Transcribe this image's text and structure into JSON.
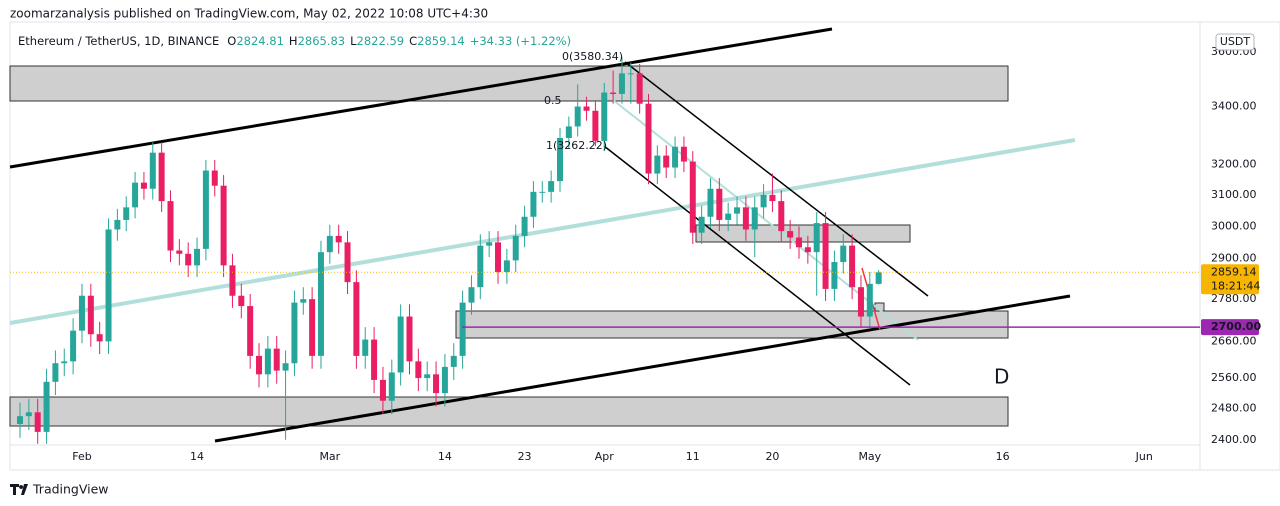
{
  "header": "zoomarzanalysis published on TradingView.com, May 02, 2022 10:08 UTC+4:30",
  "footer": "TradingView",
  "chart_data": {
    "type": "candlestick",
    "title": "Ethereum / TetherUS, 1D, BINANCE",
    "ohlc_prefixes": [
      "O",
      "H",
      "L",
      "C"
    ],
    "change": "+34.33 (+1.22%)",
    "currency": "USDT",
    "log": true,
    "up_color": "#26a69a",
    "down_color": "#e91e63",
    "open": [
      2440,
      2460,
      2470,
      2420,
      2550,
      2600,
      2605,
      2690,
      2790,
      2680,
      2660,
      2990,
      3020,
      3060,
      3140,
      3120,
      3240,
      3080,
      2925,
      2915,
      2880,
      2930,
      3180,
      3130,
      2880,
      2790,
      2760,
      2620,
      2570,
      2640,
      2580,
      2600,
      2770,
      2780,
      2620,
      2920,
      2970,
      2950,
      2830,
      2620,
      2665,
      2555,
      2500,
      2575,
      2730,
      2605,
      2560,
      2570,
      2520,
      2590,
      2620,
      2770,
      2815,
      2940,
      2950,
      2860,
      2895,
      2970,
      3030,
      3110,
      3110,
      3145,
      3290,
      3330,
      3400,
      3385,
      3280,
      3450,
      3445,
      3520,
      3520,
      3410,
      3170,
      3230,
      3190,
      3260,
      3210,
      2980,
      3030,
      3120,
      3020,
      3040,
      3060,
      2990,
      3060,
      3100,
      3080,
      2985,
      2965,
      2935,
      2920,
      3010,
      2810,
      2890,
      2940,
      2815,
      2730,
      2824.81
    ],
    "high": [
      2495,
      2505,
      2505,
      2585,
      2635,
      2640,
      2725,
      2825,
      2825,
      2715,
      3025,
      3055,
      3095,
      3175,
      3175,
      3275,
      3275,
      3115,
      2960,
      2950,
      2965,
      3215,
      3215,
      3165,
      2915,
      2825,
      2795,
      2655,
      2675,
      2675,
      2635,
      2805,
      2815,
      2815,
      2955,
      3005,
      3005,
      2985,
      2865,
      2700,
      2700,
      2590,
      2610,
      2765,
      2765,
      2640,
      2605,
      2605,
      2625,
      2655,
      2805,
      2850,
      2975,
      2985,
      2985,
      2930,
      3005,
      3065,
      3145,
      3145,
      3180,
      3325,
      3365,
      3480,
      3435,
      3420,
      3485,
      3530,
      3580.34,
      3560,
      3555,
      3445,
      3265,
      3265,
      3295,
      3295,
      3245,
      3065,
      3155,
      3155,
      3075,
      3095,
      3095,
      3095,
      3135,
      3170,
      3115,
      3020,
      3000,
      2970,
      3045,
      3045,
      2925,
      2975,
      2975,
      2850,
      2860,
      2865.83
    ],
    "low": [
      2405,
      2425,
      2390,
      2390,
      2515,
      2565,
      2570,
      2655,
      2645,
      2625,
      2625,
      2955,
      2985,
      3025,
      3085,
      3085,
      3045,
      2890,
      2880,
      2845,
      2845,
      2895,
      3095,
      2845,
      2755,
      2725,
      2585,
      2535,
      2535,
      2545,
      2400,
      2565,
      2735,
      2585,
      2585,
      2885,
      2915,
      2795,
      2585,
      2585,
      2520,
      2465,
      2465,
      2540,
      2570,
      2525,
      2525,
      2485,
      2485,
      2555,
      2585,
      2735,
      2780,
      2905,
      2825,
      2825,
      2860,
      2935,
      2995,
      3075,
      3075,
      3110,
      3255,
      3295,
      3350,
      3262.22,
      3245,
      3410,
      3410,
      3410,
      3375,
      3135,
      3135,
      3155,
      3155,
      3175,
      2945,
      2945,
      2995,
      2985,
      2985,
      3005,
      2955,
      2905,
      3025,
      3045,
      2950,
      2930,
      2900,
      2885,
      2790,
      2775,
      2775,
      2855,
      2780,
      2700,
      2695,
      2822.59
    ],
    "close": [
      2460,
      2470,
      2420,
      2550,
      2600,
      2605,
      2690,
      2790,
      2680,
      2660,
      2990,
      3020,
      3060,
      3140,
      3120,
      3240,
      3080,
      2925,
      2915,
      2880,
      2930,
      3180,
      3130,
      2880,
      2790,
      2760,
      2620,
      2570,
      2640,
      2580,
      2600,
      2770,
      2780,
      2620,
      2920,
      2970,
      2950,
      2830,
      2620,
      2665,
      2555,
      2500,
      2575,
      2730,
      2605,
      2560,
      2570,
      2520,
      2590,
      2620,
      2770,
      2815,
      2940,
      2950,
      2860,
      2895,
      2970,
      3030,
      3110,
      3110,
      3145,
      3290,
      3330,
      3400,
      3385,
      3280,
      3450,
      3445,
      3520,
      3520,
      3410,
      3170,
      3230,
      3190,
      3260,
      3210,
      2980,
      3030,
      3120,
      3020,
      3040,
      3060,
      2990,
      3060,
      3100,
      3080,
      2985,
      2965,
      2935,
      2920,
      3010,
      2810,
      2890,
      2940,
      2815,
      2730,
      2824.81,
      2859.14
    ],
    "xlim": [
      -1.13,
      133.3
    ],
    "ylim": [
      2387,
      3714
    ],
    "xticks": [
      {
        "value": 7,
        "label": "Feb"
      },
      {
        "value": 20,
        "label": "14"
      },
      {
        "value": 35,
        "label": "Mar"
      },
      {
        "value": 48,
        "label": "14"
      },
      {
        "value": 57,
        "label": "23"
      },
      {
        "value": 66,
        "label": "Apr"
      },
      {
        "value": 76,
        "label": "11"
      },
      {
        "value": 85,
        "label": "20"
      },
      {
        "value": 96,
        "label": "May"
      },
      {
        "value": 111,
        "label": "16"
      },
      {
        "value": 127,
        "label": "Jun"
      }
    ],
    "yticks": [
      {
        "value": 3600,
        "label": "3600.00"
      },
      {
        "value": 3400,
        "label": "3400.00"
      },
      {
        "value": 3200,
        "label": "3200.00"
      },
      {
        "value": 3100,
        "label": "3100.00"
      },
      {
        "value": 3000,
        "label": "3000.00"
      },
      {
        "value": 2900,
        "label": "2900.00"
      },
      {
        "value": 2780,
        "label": "2780.00"
      },
      {
        "value": 2660,
        "label": "2660.00"
      },
      {
        "value": 2560,
        "label": "2560.00"
      },
      {
        "value": 2480,
        "label": "2480.00"
      },
      {
        "value": 2400,
        "label": "2400.00"
      }
    ],
    "last_price": 2859.14,
    "last_price_color": "#f7b500",
    "countdown": "18:21:44",
    "level": {
      "value": 2700,
      "label": "2700.00",
      "color": "#9c27b0"
    },
    "annotations": [
      "0(3580.34)",
      "0.5",
      "1(3262.22)",
      "D"
    ]
  }
}
